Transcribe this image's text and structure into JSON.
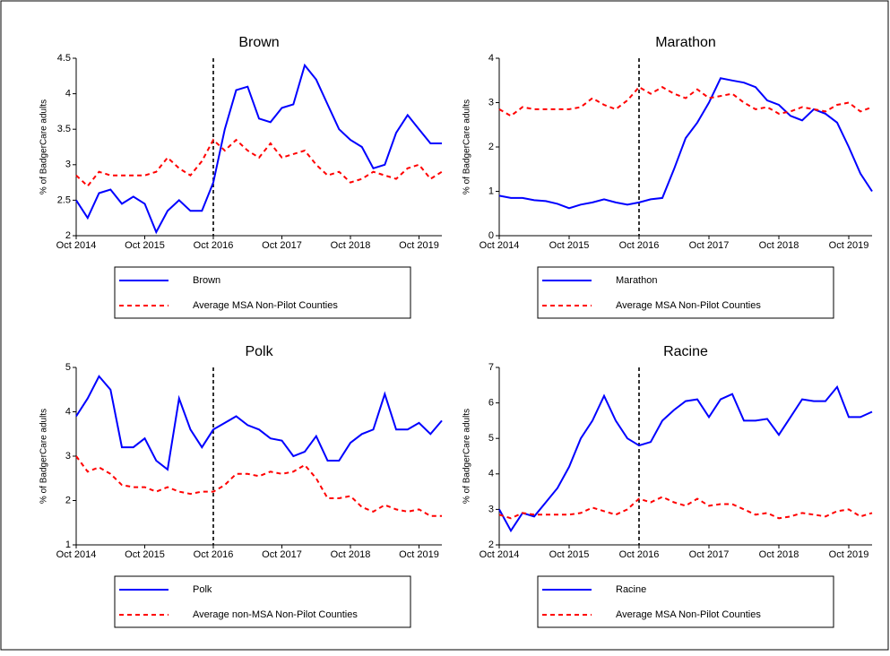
{
  "chart_data": [
    {
      "type": "line",
      "title": "Brown",
      "y_label": "% of BadgerCare adults",
      "x": [
        0,
        2,
        4,
        6,
        8,
        10,
        12,
        14,
        16,
        18,
        20,
        22,
        24,
        26,
        28,
        30,
        32,
        34,
        36,
        38,
        40,
        42,
        44,
        46,
        48,
        50,
        52,
        54,
        56,
        58,
        60,
        62,
        64
      ],
      "xlim": [
        0,
        64
      ],
      "xticks": [
        {
          "value": 0,
          "label": "Oct 2014"
        },
        {
          "value": 12,
          "label": "Oct 2015"
        },
        {
          "value": 24,
          "label": "Oct 2016"
        },
        {
          "value": 36,
          "label": "Oct 2017"
        },
        {
          "value": 48,
          "label": "Oct 2018"
        },
        {
          "value": 60,
          "label": "Oct 2019"
        }
      ],
      "ylim": [
        2,
        4.5
      ],
      "yticks": [
        2,
        2.5,
        3,
        3.5,
        4,
        4.5
      ],
      "vline": 24,
      "series": [
        {
          "name": "Brown",
          "color": "#0000ff",
          "style": "solid",
          "values": [
            2.5,
            2.25,
            2.6,
            2.65,
            2.45,
            2.55,
            2.45,
            2.05,
            2.35,
            2.5,
            2.35,
            2.35,
            2.75,
            3.5,
            4.05,
            4.1,
            3.65,
            3.6,
            3.8,
            3.85,
            4.4,
            4.2,
            3.85,
            3.5,
            3.35,
            3.25,
            2.95,
            3.0,
            3.45,
            3.7,
            3.5,
            3.3,
            3.3
          ]
        },
        {
          "name": "Average MSA Non-Pilot Counties",
          "color": "#ff0000",
          "style": "dashed",
          "values": [
            2.85,
            2.7,
            2.9,
            2.85,
            2.85,
            2.85,
            2.85,
            2.9,
            3.1,
            2.95,
            2.85,
            3.05,
            3.35,
            3.2,
            3.35,
            3.2,
            3.1,
            3.3,
            3.1,
            3.15,
            3.2,
            3.0,
            2.85,
            2.9,
            2.75,
            2.8,
            2.9,
            2.85,
            2.8,
            2.95,
            3.0,
            2.8,
            2.9
          ]
        }
      ]
    },
    {
      "type": "line",
      "title": "Marathon",
      "y_label": "% of BadgerCare adults",
      "x": [
        0,
        2,
        4,
        6,
        8,
        10,
        12,
        14,
        16,
        18,
        20,
        22,
        24,
        26,
        28,
        30,
        32,
        34,
        36,
        38,
        40,
        42,
        44,
        46,
        48,
        50,
        52,
        54,
        56,
        58,
        60,
        62,
        64
      ],
      "xlim": [
        0,
        64
      ],
      "xticks": [
        {
          "value": 0,
          "label": "Oct 2014"
        },
        {
          "value": 12,
          "label": "Oct 2015"
        },
        {
          "value": 24,
          "label": "Oct 2016"
        },
        {
          "value": 36,
          "label": "Oct 2017"
        },
        {
          "value": 48,
          "label": "Oct 2018"
        },
        {
          "value": 60,
          "label": "Oct 2019"
        }
      ],
      "ylim": [
        0,
        4
      ],
      "yticks": [
        0,
        1,
        2,
        3,
        4
      ],
      "vline": 24,
      "series": [
        {
          "name": "Marathon",
          "color": "#0000ff",
          "style": "solid",
          "values": [
            0.9,
            0.85,
            0.85,
            0.8,
            0.78,
            0.72,
            0.62,
            0.7,
            0.75,
            0.82,
            0.75,
            0.7,
            0.75,
            0.82,
            0.85,
            1.5,
            2.2,
            2.55,
            3.0,
            3.55,
            3.5,
            3.45,
            3.35,
            3.05,
            2.95,
            2.7,
            2.6,
            2.85,
            2.75,
            2.55,
            2.0,
            1.4,
            1.0
          ]
        },
        {
          "name": "Average MSA Non-Pilot Counties",
          "color": "#ff0000",
          "style": "dashed",
          "values": [
            2.85,
            2.7,
            2.9,
            2.85,
            2.85,
            2.85,
            2.85,
            2.9,
            3.1,
            2.95,
            2.85,
            3.05,
            3.35,
            3.2,
            3.35,
            3.2,
            3.1,
            3.3,
            3.1,
            3.15,
            3.2,
            3.0,
            2.85,
            2.9,
            2.75,
            2.8,
            2.9,
            2.85,
            2.8,
            2.95,
            3.0,
            2.8,
            2.9
          ]
        }
      ]
    },
    {
      "type": "line",
      "title": "Polk",
      "y_label": "% of BadgerCare adults",
      "x": [
        0,
        2,
        4,
        6,
        8,
        10,
        12,
        14,
        16,
        18,
        20,
        22,
        24,
        26,
        28,
        30,
        32,
        34,
        36,
        38,
        40,
        42,
        44,
        46,
        48,
        50,
        52,
        54,
        56,
        58,
        60,
        62,
        64
      ],
      "xlim": [
        0,
        64
      ],
      "xticks": [
        {
          "value": 0,
          "label": "Oct 2014"
        },
        {
          "value": 12,
          "label": "Oct 2015"
        },
        {
          "value": 24,
          "label": "Oct 2016"
        },
        {
          "value": 36,
          "label": "Oct 2017"
        },
        {
          "value": 48,
          "label": "Oct 2018"
        },
        {
          "value": 60,
          "label": "Oct 2019"
        }
      ],
      "ylim": [
        1,
        5
      ],
      "yticks": [
        1,
        2,
        3,
        4,
        5
      ],
      "vline": 24,
      "series": [
        {
          "name": "Polk",
          "color": "#0000ff",
          "style": "solid",
          "values": [
            3.9,
            4.3,
            4.8,
            4.5,
            3.2,
            3.2,
            3.4,
            2.9,
            2.7,
            4.3,
            3.6,
            3.2,
            3.6,
            3.75,
            3.9,
            3.7,
            3.6,
            3.4,
            3.35,
            3.0,
            3.1,
            3.45,
            2.9,
            2.9,
            3.3,
            3.5,
            3.6,
            4.4,
            3.6,
            3.6,
            3.75,
            3.5,
            3.8
          ]
        },
        {
          "name": "Average non-MSA Non-Pilot Counties",
          "color": "#ff0000",
          "style": "dashed",
          "values": [
            3.0,
            2.65,
            2.75,
            2.6,
            2.35,
            2.3,
            2.3,
            2.2,
            2.3,
            2.2,
            2.15,
            2.2,
            2.2,
            2.35,
            2.6,
            2.6,
            2.55,
            2.65,
            2.6,
            2.65,
            2.8,
            2.5,
            2.05,
            2.05,
            2.1,
            1.85,
            1.75,
            1.9,
            1.8,
            1.75,
            1.8,
            1.65,
            1.65
          ]
        }
      ]
    },
    {
      "type": "line",
      "title": "Racine",
      "y_label": "% of BadgerCare adults",
      "x": [
        0,
        2,
        4,
        6,
        8,
        10,
        12,
        14,
        16,
        18,
        20,
        22,
        24,
        26,
        28,
        30,
        32,
        34,
        36,
        38,
        40,
        42,
        44,
        46,
        48,
        50,
        52,
        54,
        56,
        58,
        60,
        62,
        64
      ],
      "xlim": [
        0,
        64
      ],
      "xticks": [
        {
          "value": 0,
          "label": "Oct 2014"
        },
        {
          "value": 12,
          "label": "Oct 2015"
        },
        {
          "value": 24,
          "label": "Oct 2016"
        },
        {
          "value": 36,
          "label": "Oct 2017"
        },
        {
          "value": 48,
          "label": "Oct 2018"
        },
        {
          "value": 60,
          "label": "Oct 2019"
        }
      ],
      "ylim": [
        2,
        7
      ],
      "yticks": [
        2,
        3,
        4,
        5,
        6,
        7
      ],
      "vline": 24,
      "series": [
        {
          "name": "Racine",
          "color": "#0000ff",
          "style": "solid",
          "values": [
            3.0,
            2.4,
            2.9,
            2.8,
            3.2,
            3.6,
            4.2,
            5.0,
            5.5,
            6.2,
            5.5,
            5.0,
            4.8,
            4.9,
            5.5,
            5.8,
            6.05,
            6.1,
            5.6,
            6.1,
            6.25,
            5.5,
            5.5,
            5.55,
            5.1,
            5.6,
            6.1,
            6.05,
            6.05,
            6.45,
            5.6,
            5.6,
            5.75
          ]
        },
        {
          "name": "Average MSA Non-Pilot Counties",
          "color": "#ff0000",
          "style": "dashed",
          "values": [
            2.85,
            2.75,
            2.9,
            2.85,
            2.85,
            2.85,
            2.85,
            2.9,
            3.05,
            2.95,
            2.85,
            3.0,
            3.3,
            3.2,
            3.35,
            3.2,
            3.1,
            3.3,
            3.1,
            3.15,
            3.15,
            3.0,
            2.85,
            2.9,
            2.75,
            2.8,
            2.9,
            2.85,
            2.8,
            2.95,
            3.0,
            2.8,
            2.9
          ]
        }
      ]
    }
  ]
}
